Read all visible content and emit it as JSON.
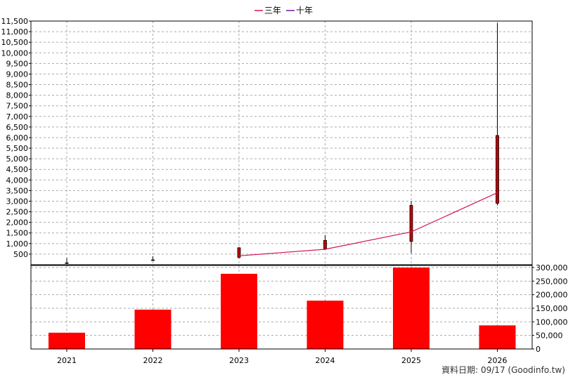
{
  "chart_data": {
    "type": "candlestick+bar",
    "legend": {
      "position": "top-center",
      "entries": [
        {
          "name": "三年",
          "color": "#d4145a"
        },
        {
          "name": "十年",
          "color": "#6a1b9a"
        }
      ]
    },
    "categories": [
      "2021",
      "2022",
      "2023",
      "2024",
      "2025",
      "2026"
    ],
    "price_axis": {
      "ylim": [
        0,
        11500
      ],
      "ticks": [
        "500",
        "1,000",
        "1,500",
        "2,000",
        "2,500",
        "3,000",
        "3,500",
        "4,000",
        "4,500",
        "5,000",
        "5,500",
        "6,000",
        "6,500",
        "7,000",
        "7,500",
        "8,000",
        "8,500",
        "9,000",
        "9,500",
        "10,000",
        "10,500",
        "11,000",
        "11,500"
      ],
      "grid": true
    },
    "candles": [
      {
        "x": "2021",
        "open": 90,
        "close": 60,
        "high": 320,
        "low": 40
      },
      {
        "x": "2022",
        "open": 230,
        "close": 200,
        "high": 400,
        "low": 190
      },
      {
        "x": "2023",
        "open": 350,
        "close": 800,
        "high": 830,
        "low": 300
      },
      {
        "x": "2024",
        "open": 750,
        "close": 1150,
        "high": 1400,
        "low": 700
      },
      {
        "x": "2025",
        "open": 1100,
        "close": 2800,
        "high": 3000,
        "low": 550
      },
      {
        "x": "2026",
        "open": 2900,
        "close": 6100,
        "high": 11400,
        "low": 2800
      }
    ],
    "candle_color": "#c00000",
    "line_series": [
      {
        "name": "三年",
        "color": "#d4145a",
        "x": [
          "2023",
          "2024",
          "2025",
          "2026"
        ],
        "values": [
          420,
          730,
          1550,
          3400
        ]
      }
    ],
    "volume_axis": {
      "ylim": [
        0,
        300000
      ],
      "ticks": [
        "0",
        "50,000",
        "100,000",
        "150,000",
        "200,000",
        "250,000",
        "300,000"
      ],
      "grid": true
    },
    "volume_bars": {
      "color": "#ff0000",
      "values": [
        60000,
        145000,
        277000,
        178000,
        300000,
        87000
      ]
    },
    "footer_note": "資料日期: 09/17  (Goodinfo.tw)"
  }
}
